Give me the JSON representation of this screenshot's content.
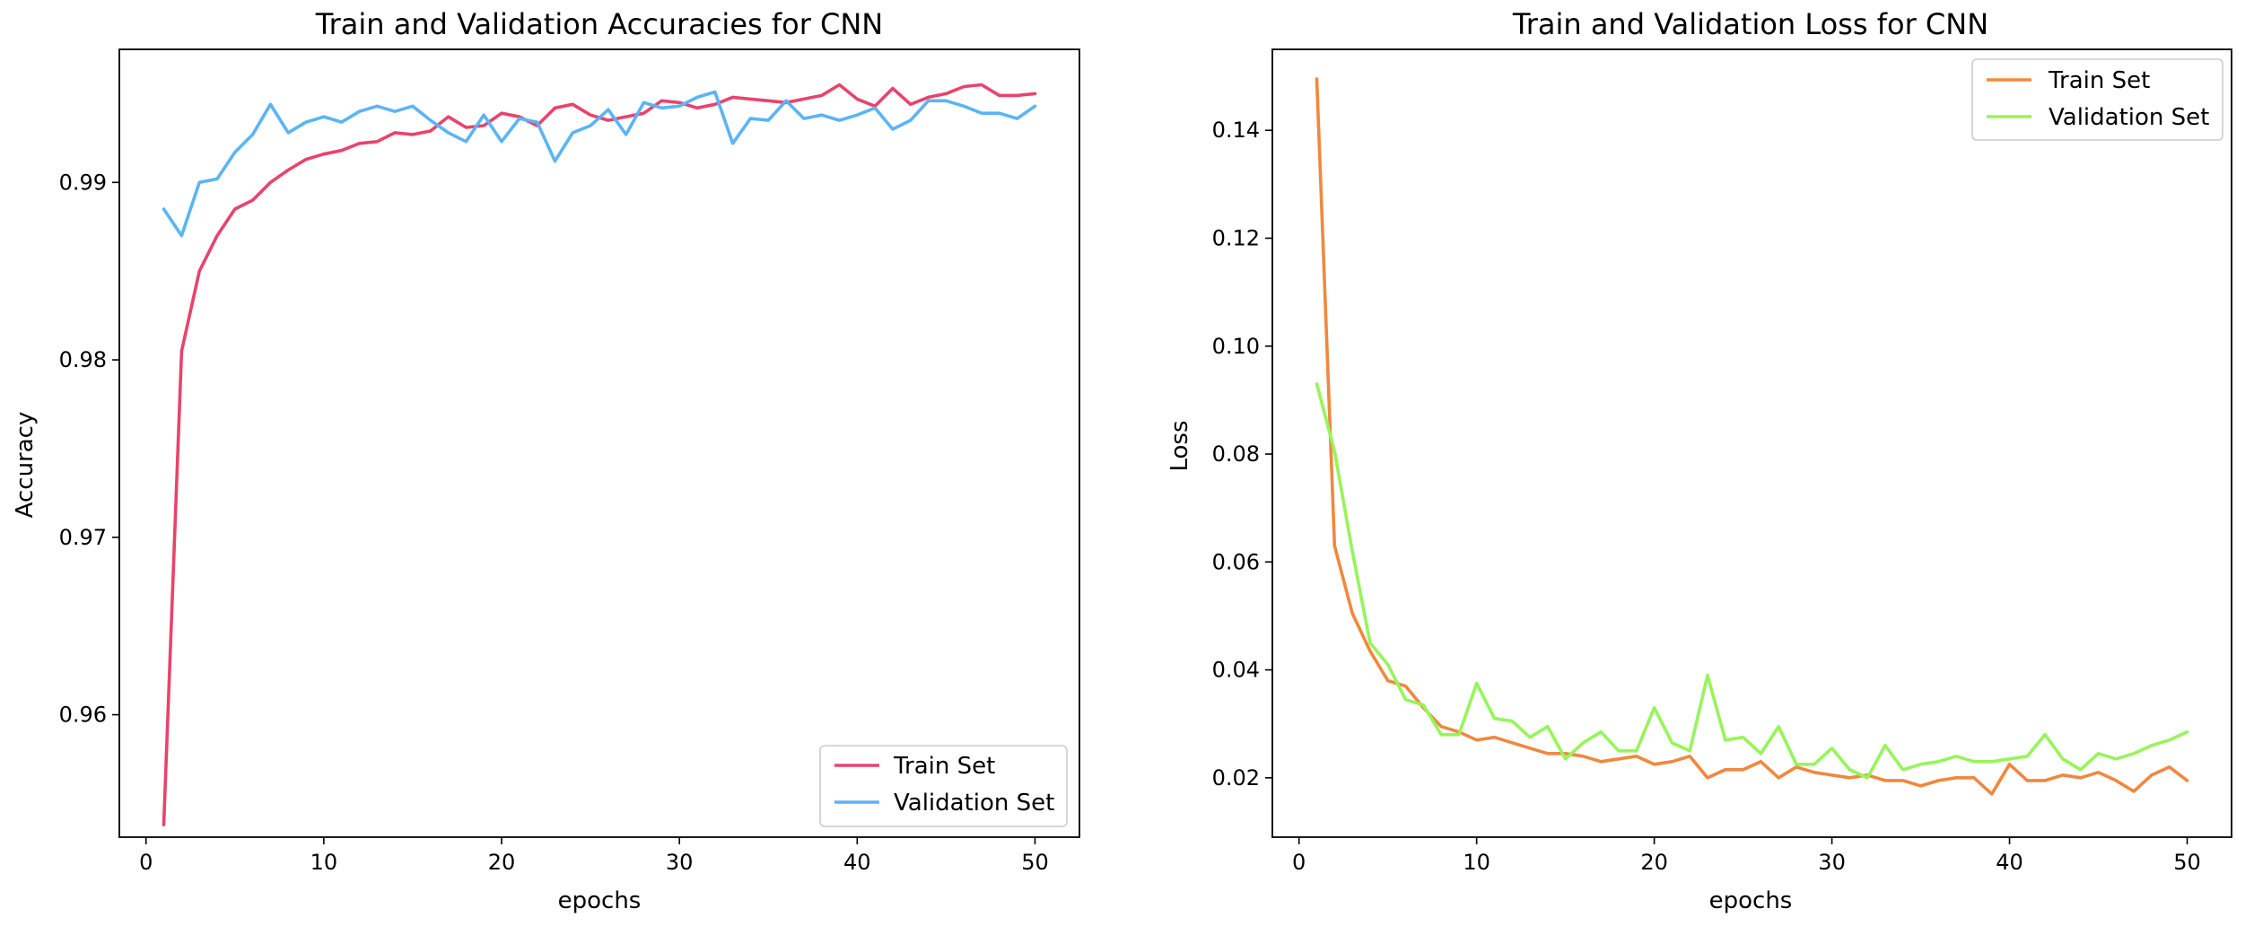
{
  "chart_data": [
    {
      "type": "line",
      "title": "Train and Validation Accuracies for CNN",
      "xlabel": "epochs",
      "ylabel": "Accuracy",
      "xlim": [
        -1.5,
        52.5
      ],
      "ylim": [
        0.9531,
        0.9975
      ],
      "xticks": [
        0,
        10,
        20,
        30,
        40,
        50
      ],
      "yticks": [
        0.96,
        0.97,
        0.98,
        0.99
      ],
      "ytick_labels": [
        "0.96",
        "0.97",
        "0.98",
        "0.99"
      ],
      "grid": false,
      "legend": "lower right",
      "x": [
        1,
        2,
        3,
        4,
        5,
        6,
        7,
        8,
        9,
        10,
        11,
        12,
        13,
        14,
        15,
        16,
        17,
        18,
        19,
        20,
        21,
        22,
        23,
        24,
        25,
        26,
        27,
        28,
        29,
        30,
        31,
        32,
        33,
        34,
        35,
        36,
        37,
        38,
        39,
        40,
        41,
        42,
        43,
        44,
        45,
        46,
        47,
        48,
        49,
        50
      ],
      "series": [
        {
          "name": "Train Set",
          "color": "#e8446b",
          "values": [
            0.9538,
            0.9805,
            0.985,
            0.987,
            0.9885,
            0.989,
            0.99,
            0.9907,
            0.9913,
            0.9916,
            0.9918,
            0.9922,
            0.9923,
            0.9928,
            0.9927,
            0.9929,
            0.9937,
            0.9931,
            0.9932,
            0.9939,
            0.9937,
            0.9932,
            0.9942,
            0.9944,
            0.9938,
            0.9935,
            0.9937,
            0.9939,
            0.9946,
            0.9945,
            0.9942,
            0.9944,
            0.9948,
            0.9947,
            0.9946,
            0.9945,
            0.9947,
            0.9949,
            0.9955,
            0.9947,
            0.9943,
            0.9953,
            0.9944,
            0.9948,
            0.995,
            0.9954,
            0.9955,
            0.9949,
            0.9949,
            0.995
          ]
        },
        {
          "name": "Validation Set",
          "color": "#5bb4f5",
          "values": [
            0.9885,
            0.987,
            0.99,
            0.9902,
            0.9917,
            0.9927,
            0.9944,
            0.9928,
            0.9934,
            0.9937,
            0.9934,
            0.994,
            0.9943,
            0.994,
            0.9943,
            0.9935,
            0.9928,
            0.9923,
            0.9938,
            0.9923,
            0.9936,
            0.9934,
            0.9912,
            0.9928,
            0.9932,
            0.9941,
            0.9927,
            0.9945,
            0.9942,
            0.9943,
            0.9948,
            0.9951,
            0.9922,
            0.9936,
            0.9935,
            0.9946,
            0.9936,
            0.9938,
            0.9935,
            0.9938,
            0.9942,
            0.993,
            0.9935,
            0.9946,
            0.9946,
            0.9943,
            0.9939,
            0.9939,
            0.9936,
            0.9943
          ]
        }
      ]
    },
    {
      "type": "line",
      "title": "Train and Validation Loss for CNN",
      "xlabel": "epochs",
      "ylabel": "Loss",
      "xlim": [
        -1.5,
        52.5
      ],
      "ylim": [
        0.009,
        0.155
      ],
      "xticks": [
        0,
        10,
        20,
        30,
        40,
        50
      ],
      "yticks": [
        0.02,
        0.04,
        0.06,
        0.08,
        0.1,
        0.12,
        0.14
      ],
      "ytick_labels": [
        "0.02",
        "0.04",
        "0.06",
        "0.08",
        "0.10",
        "0.12",
        "0.14"
      ],
      "grid": false,
      "legend": "upper right",
      "x": [
        1,
        2,
        3,
        4,
        5,
        6,
        7,
        8,
        9,
        10,
        11,
        12,
        13,
        14,
        15,
        16,
        17,
        18,
        19,
        20,
        21,
        22,
        23,
        24,
        25,
        26,
        27,
        28,
        29,
        30,
        31,
        32,
        33,
        34,
        35,
        36,
        37,
        38,
        39,
        40,
        41,
        42,
        43,
        44,
        45,
        46,
        47,
        48,
        49,
        50
      ],
      "series": [
        {
          "name": "Train Set",
          "color": "#f0883e",
          "values": [
            0.1495,
            0.063,
            0.0505,
            0.0435,
            0.038,
            0.037,
            0.033,
            0.0295,
            0.0285,
            0.027,
            0.0275,
            0.0265,
            0.0255,
            0.0245,
            0.0245,
            0.024,
            0.023,
            0.0235,
            0.024,
            0.0225,
            0.023,
            0.024,
            0.02,
            0.0215,
            0.0215,
            0.023,
            0.02,
            0.022,
            0.021,
            0.0205,
            0.02,
            0.0205,
            0.0195,
            0.0195,
            0.0185,
            0.0195,
            0.02,
            0.02,
            0.017,
            0.0225,
            0.0195,
            0.0195,
            0.0205,
            0.02,
            0.021,
            0.0195,
            0.0175,
            0.0205,
            0.022,
            0.0195
          ]
        },
        {
          "name": "Validation Set",
          "color": "#96f55a",
          "values": [
            0.093,
            0.0805,
            0.062,
            0.045,
            0.041,
            0.0345,
            0.0335,
            0.028,
            0.028,
            0.0375,
            0.031,
            0.0305,
            0.0275,
            0.0295,
            0.0235,
            0.0265,
            0.0285,
            0.025,
            0.025,
            0.033,
            0.0265,
            0.025,
            0.039,
            0.027,
            0.0275,
            0.0245,
            0.0295,
            0.0225,
            0.0225,
            0.0255,
            0.0215,
            0.02,
            0.026,
            0.0215,
            0.0225,
            0.023,
            0.024,
            0.023,
            0.023,
            0.0235,
            0.024,
            0.028,
            0.0235,
            0.0215,
            0.0245,
            0.0235,
            0.0245,
            0.026,
            0.027,
            0.0285
          ]
        }
      ]
    }
  ]
}
